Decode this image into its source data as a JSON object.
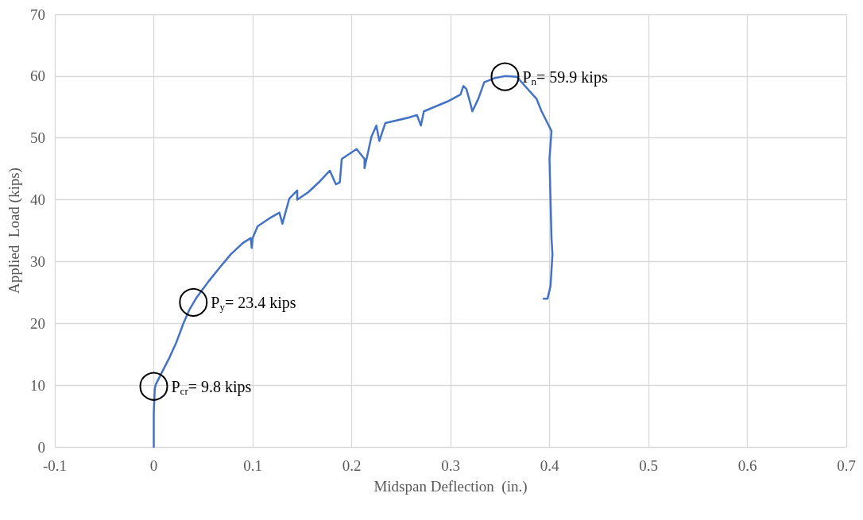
{
  "chart_data": {
    "type": "line",
    "xlabel": "Midspan Deflection  (in.)",
    "ylabel": "Applied  Load (kips)",
    "xlim": [
      -0.1,
      0.7
    ],
    "xticks": [
      -0.1,
      0,
      0.1,
      0.2,
      0.3,
      0.4,
      0.5,
      0.6,
      0.7
    ],
    "ylim": [
      0,
      70
    ],
    "yticks": [
      0,
      10,
      20,
      30,
      40,
      50,
      60,
      70
    ],
    "grid": true,
    "marker": "none",
    "line_style": "solid",
    "series": [
      {
        "color": "#4472c4",
        "x": [
          0,
          0,
          0.001,
          0.002,
          0.008,
          0.016,
          0.023,
          0.03,
          0.036,
          0.043,
          0.055,
          0.066,
          0.078,
          0.09,
          0.098,
          0.099,
          0.1,
          0.105,
          0.117,
          0.127,
          0.13,
          0.137,
          0.145,
          0.145,
          0.156,
          0.168,
          0.178,
          0.184,
          0.188,
          0.19,
          0.205,
          0.213,
          0.213,
          0.22,
          0.225,
          0.228,
          0.234,
          0.258,
          0.266,
          0.27,
          0.273,
          0.297,
          0.31,
          0.313,
          0.316,
          0.32,
          0.322,
          0.328,
          0.334,
          0.345,
          0.355,
          0.367,
          0.373,
          0.387,
          0.392,
          0.398,
          0.402,
          0.4,
          0.402,
          0.403,
          0.401,
          0.398,
          0.394
        ],
        "values": [
          0,
          5.5,
          9.4,
          10.1,
          12,
          14.5,
          17,
          20,
          22.2,
          24.1,
          26.7,
          28.9,
          31.2,
          33,
          33.8,
          32.2,
          33.8,
          35.7,
          37,
          37.9,
          36.1,
          40.2,
          41.5,
          40,
          41.2,
          43,
          44.7,
          42.5,
          42.8,
          46.6,
          48.2,
          46.6,
          45.1,
          50.2,
          52,
          49.5,
          52.4,
          53.3,
          53.7,
          52,
          54.3,
          55.9,
          57,
          58.4,
          57.9,
          55.6,
          54.3,
          56.3,
          59,
          59.7,
          60,
          59.9,
          58.8,
          56.3,
          54.3,
          52.4,
          51.1,
          46.6,
          33.8,
          31.2,
          26,
          24,
          24
        ]
      }
    ],
    "annotations": [
      {
        "text": "P$_{cr}$= 9.8 kips",
        "x": 0,
        "y": 9.8
      },
      {
        "text": "P$_{y}$= 23.4 kips",
        "x": 0.04,
        "y": 23.4
      },
      {
        "text": "P$_{n}$= 59.9 kips",
        "x": 0.355,
        "y": 59.9
      }
    ]
  }
}
